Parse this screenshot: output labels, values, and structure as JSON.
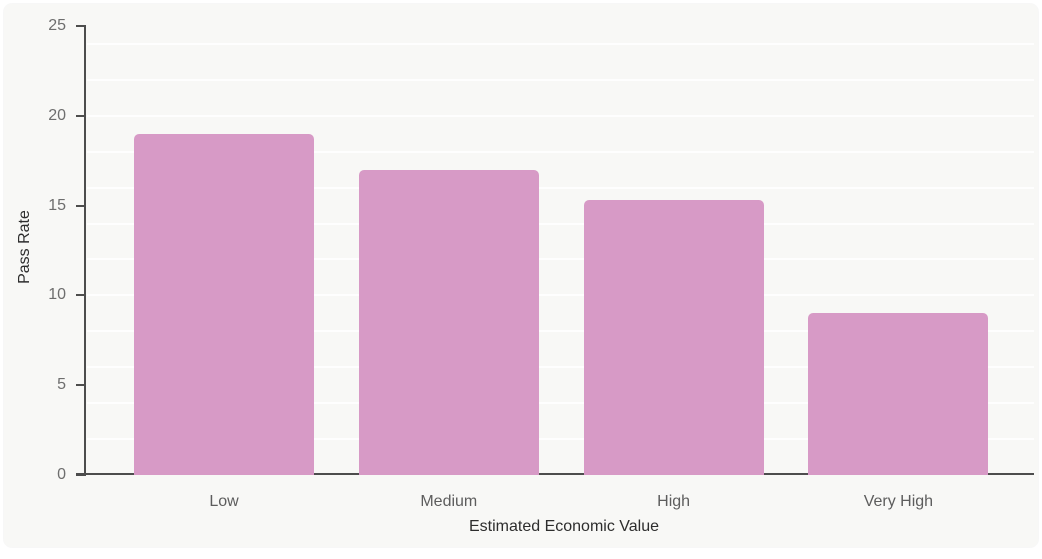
{
  "chart_data": {
    "type": "bar",
    "categories": [
      "Low",
      "Medium",
      "High",
      "Very High"
    ],
    "values": [
      19,
      17,
      15.3,
      9
    ],
    "title": "",
    "xlabel": "Estimated Economic Value",
    "ylabel": "Pass Rate",
    "ylim": [
      0,
      25
    ],
    "y_ticks": [
      0,
      5,
      10,
      15,
      20,
      25
    ],
    "gridline_step": 2,
    "grid": "horizontal",
    "legend_position": "none",
    "colors": {
      "bar": "#d79ac6",
      "background": "#f8f8f6",
      "axis": "#4d4d4d",
      "gridline": "#ffffff",
      "tick_label": "#6e6e6e",
      "category_label": "#5d5d5d",
      "axis_title": "#2d2d2d"
    }
  }
}
